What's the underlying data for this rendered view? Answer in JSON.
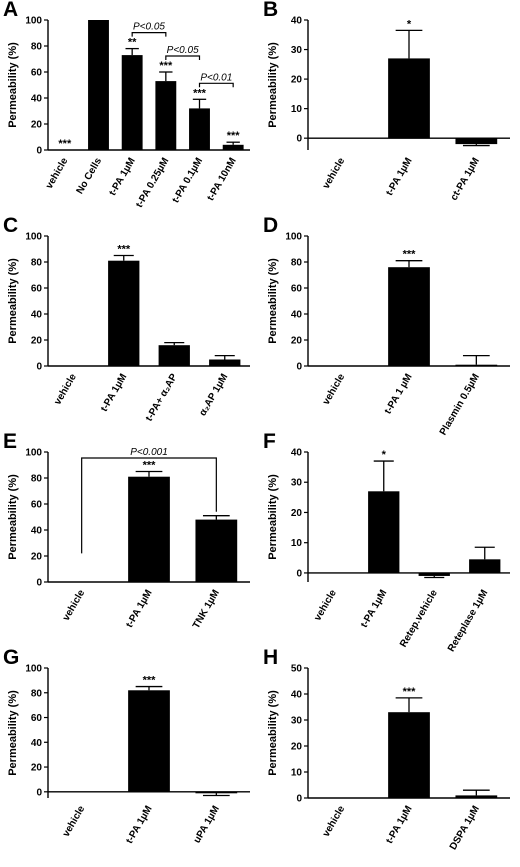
{
  "chart_data": [
    {
      "panel": "A",
      "type": "bar",
      "ylabel": "Permeability (%)",
      "ylim": [
        0,
        100
      ],
      "yticks": [
        0,
        20,
        40,
        60,
        80,
        100
      ],
      "categories": [
        "vehicle",
        "No Cells",
        "t-PA 1µM",
        "t-PA 0.25µM",
        "t-PA 0.1µM",
        "t-PA 10nM"
      ],
      "values": [
        0,
        100,
        73,
        53,
        32,
        4
      ],
      "errors": [
        0,
        0,
        5,
        7,
        7,
        2
      ],
      "significance": [
        "***",
        "",
        "**",
        "***",
        "***",
        "***"
      ],
      "comparisons": [
        {
          "from": 2,
          "to": 3,
          "label": "P<0.05"
        },
        {
          "from": 3,
          "to": 4,
          "label": "P<0.05"
        },
        {
          "from": 4,
          "to": 5,
          "label": "P<0.01"
        }
      ]
    },
    {
      "panel": "B",
      "type": "bar",
      "ylabel": "Permeability (%)",
      "ylim": [
        -4,
        40
      ],
      "yticks": [
        0,
        10,
        20,
        30,
        40
      ],
      "categories": [
        "vehicle",
        "t-PA 1µM",
        "ct-PA 1µM"
      ],
      "values": [
        0,
        27,
        -2
      ],
      "errors": [
        0,
        9.5,
        0.5
      ],
      "significance": [
        "",
        "*",
        ""
      ],
      "comparisons": []
    },
    {
      "panel": "C",
      "type": "bar",
      "ylabel": "Permeability (%)",
      "ylim": [
        0,
        100
      ],
      "yticks": [
        0,
        20,
        40,
        60,
        80,
        100
      ],
      "categories": [
        "vehicle",
        "t-PA 1µM",
        "t-PA+ α₂AP",
        "α₂AP 1µM"
      ],
      "values": [
        0,
        81,
        16,
        5
      ],
      "errors": [
        0,
        4,
        2,
        3
      ],
      "significance": [
        "",
        "***",
        "",
        ""
      ],
      "comparisons": []
    },
    {
      "panel": "D",
      "type": "bar",
      "ylabel": "Permeability (%)",
      "ylim": [
        0,
        100
      ],
      "yticks": [
        0,
        20,
        40,
        60,
        80,
        100
      ],
      "categories": [
        "vehicle",
        "t-PA 1 µM",
        "Plasmin 0.5µM"
      ],
      "values": [
        0,
        76,
        1
      ],
      "errors": [
        0,
        5,
        7
      ],
      "significance": [
        "",
        "***",
        ""
      ],
      "comparisons": []
    },
    {
      "panel": "E",
      "type": "bar",
      "ylabel": "Permeability (%)",
      "ylim": [
        0,
        100
      ],
      "yticks": [
        0,
        20,
        40,
        60,
        80,
        100
      ],
      "categories": [
        "vehicle",
        "t-PA 1µM",
        "TNK 1µM"
      ],
      "values": [
        0,
        81,
        48
      ],
      "errors": [
        0,
        4,
        3
      ],
      "significance": [
        "",
        "***",
        ""
      ],
      "comparisons": [
        {
          "from": 0,
          "to": 2,
          "label": "P<0.001"
        }
      ]
    },
    {
      "panel": "F",
      "type": "bar",
      "ylabel": "Permeability (%)",
      "ylim": [
        -3,
        40
      ],
      "yticks": [
        0,
        10,
        20,
        30,
        40
      ],
      "categories": [
        "vehicle",
        "t-PA 1µM",
        "Retep.vehicle",
        "Reteplase 1µM"
      ],
      "values": [
        0,
        27,
        -1,
        4.5
      ],
      "errors": [
        0,
        10,
        0.5,
        4
      ],
      "significance": [
        "",
        "*",
        "",
        ""
      ],
      "comparisons": []
    },
    {
      "panel": "G",
      "type": "bar",
      "ylabel": "Permeability (%)",
      "ylim": [
        -5,
        100
      ],
      "yticks": [
        0,
        20,
        40,
        60,
        80,
        100
      ],
      "categories": [
        "vehicle",
        "t-PA 1µM",
        "uPA 1µM"
      ],
      "values": [
        0,
        82,
        -1
      ],
      "errors": [
        0,
        3,
        2
      ],
      "significance": [
        "",
        "***",
        ""
      ],
      "comparisons": []
    },
    {
      "panel": "H",
      "type": "bar",
      "ylabel": "Permeability (%)",
      "ylim": [
        0,
        50
      ],
      "yticks": [
        0,
        10,
        20,
        30,
        40,
        50
      ],
      "categories": [
        "vehicle",
        "t-PA 1µM",
        "DSPA 1µM"
      ],
      "values": [
        0,
        33,
        1
      ],
      "errors": [
        0,
        5.5,
        2
      ],
      "significance": [
        "",
        "***",
        ""
      ],
      "comparisons": []
    }
  ]
}
